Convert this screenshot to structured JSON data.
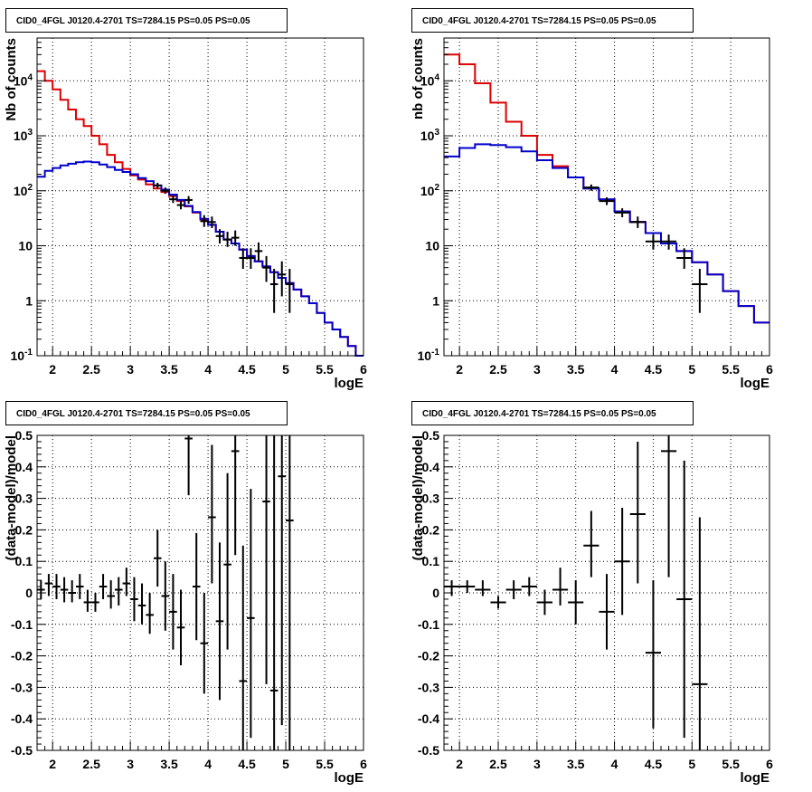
{
  "colors": {
    "data": "#000000",
    "total_model": "#dd0000",
    "source_model": "#0000cc",
    "grid": "#000000"
  },
  "chart_data": [
    {
      "type": "line",
      "title": "CID0_4FGL J0120.4-2701 TS=7284.15 PS=0.05 PS=0.05",
      "xlabel": "logE",
      "ylabel": "Nb of counts",
      "xlim": [
        1.8,
        6.0
      ],
      "ylim": [
        0.1,
        60000
      ],
      "log_y": true,
      "grid": true,
      "x_ticks": [
        2,
        2.5,
        3,
        3.5,
        4,
        4.5,
        5,
        5.5,
        6
      ],
      "x_tick_labels": [
        "2",
        "2.5",
        "3",
        "3.5",
        "4",
        "4.5",
        "5",
        "5.5",
        "6"
      ],
      "y_ticks": [
        0.1,
        1,
        10,
        100,
        1000,
        10000
      ],
      "y_tick_labels": [
        "10^-1",
        "1",
        "10",
        "10^2",
        "10^3",
        "10^4"
      ],
      "bin_edges": [
        1.8,
        1.9,
        2.0,
        2.1,
        2.2,
        2.3,
        2.4,
        2.5,
        2.6,
        2.7,
        2.8,
        2.9,
        3.0,
        3.1,
        3.2,
        3.3,
        3.4,
        3.5,
        3.6,
        3.7,
        3.8,
        3.9,
        4.0,
        4.1,
        4.2,
        4.3,
        4.4,
        4.5,
        4.6,
        4.7,
        4.8,
        4.9,
        5.0,
        5.1,
        5.2,
        5.3,
        5.4,
        5.5,
        5.6,
        5.7,
        5.8,
        5.9,
        6.0
      ],
      "series": [
        {
          "role": "total_model",
          "values": [
            15000,
            10000,
            7000,
            4500,
            3000,
            2000,
            1500,
            1000,
            700,
            450,
            330,
            250,
            190,
            160,
            130,
            110,
            95,
            80,
            65,
            52,
            40,
            30,
            24,
            18,
            13,
            11,
            8.5,
            6.5,
            5.2,
            4.2,
            3.3,
            2.6,
            2.1,
            1.6,
            1.2,
            0.9,
            0.6,
            0.4,
            0.3,
            0.22,
            0.15,
            0.1
          ]
        },
        {
          "role": "source_model",
          "values": [
            180,
            230,
            260,
            290,
            310,
            330,
            340,
            330,
            300,
            270,
            240,
            220,
            200,
            170,
            150,
            125,
            105,
            85,
            68,
            53,
            41,
            31,
            24,
            18,
            13,
            11,
            8.5,
            6.5,
            5.2,
            4.2,
            3.3,
            2.6,
            2.1,
            1.6,
            1.2,
            0.9,
            0.6,
            0.4,
            0.3,
            0.22,
            0.15,
            0.1
          ]
        }
      ],
      "points": [
        {
          "x": 3.35,
          "y": 125,
          "lo": 110,
          "hi": 140
        },
        {
          "x": 3.45,
          "y": 100,
          "lo": 88,
          "hi": 115
        },
        {
          "x": 3.55,
          "y": 70,
          "lo": 60,
          "hi": 82
        },
        {
          "x": 3.65,
          "y": 55,
          "lo": 46,
          "hi": 65
        },
        {
          "x": 3.75,
          "y": 68,
          "lo": 58,
          "hi": 80
        },
        {
          "x": 3.95,
          "y": 28,
          "lo": 22,
          "hi": 36
        },
        {
          "x": 4.05,
          "y": 27,
          "lo": 21,
          "hi": 34
        },
        {
          "x": 4.15,
          "y": 15,
          "lo": 11,
          "hi": 20
        },
        {
          "x": 4.25,
          "y": 13,
          "lo": 9.5,
          "hi": 18
        },
        {
          "x": 4.35,
          "y": 14,
          "lo": 10,
          "hi": 19
        },
        {
          "x": 4.45,
          "y": 6,
          "lo": 3.8,
          "hi": 9
        },
        {
          "x": 4.55,
          "y": 6,
          "lo": 3.8,
          "hi": 9
        },
        {
          "x": 4.65,
          "y": 8,
          "lo": 5.2,
          "hi": 11.5
        },
        {
          "x": 4.75,
          "y": 4,
          "lo": 2.2,
          "hi": 6.5
        },
        {
          "x": 4.85,
          "y": 2,
          "lo": 0.6,
          "hi": 3.8
        },
        {
          "x": 4.95,
          "y": 3,
          "lo": 1.2,
          "hi": 5.2
        },
        {
          "x": 5.05,
          "y": 2,
          "lo": 0.6,
          "hi": 3.8
        }
      ]
    },
    {
      "type": "line",
      "title": "CID0_4FGL J0120.4-2701 TS=7284.15 PS=0.05 PS=0.05",
      "xlabel": "logE",
      "ylabel": "nb of counts",
      "xlim": [
        1.8,
        6.0
      ],
      "ylim": [
        0.1,
        60000
      ],
      "log_y": true,
      "grid": true,
      "x_ticks": [
        2,
        2.5,
        3,
        3.5,
        4,
        4.5,
        5,
        5.5,
        6
      ],
      "x_tick_labels": [
        "2",
        "2.5",
        "3",
        "3.5",
        "4",
        "4.5",
        "5",
        "5.5",
        "6"
      ],
      "y_ticks": [
        0.1,
        1,
        10,
        100,
        1000,
        10000
      ],
      "y_tick_labels": [
        "10^-1",
        "1",
        "10",
        "10^2",
        "10^3",
        "10^4"
      ],
      "bin_edges": [
        1.8,
        2.0,
        2.2,
        2.4,
        2.6,
        2.8,
        3.0,
        3.2,
        3.4,
        3.6,
        3.8,
        4.0,
        4.2,
        4.4,
        4.6,
        4.8,
        5.0,
        5.2,
        5.4,
        5.6,
        5.8,
        6.0
      ],
      "series": [
        {
          "role": "total_model",
          "values": [
            30000,
            20000,
            9000,
            4000,
            1800,
            1000,
            450,
            280,
            175,
            110,
            70,
            42,
            27,
            17,
            11,
            8,
            5,
            3,
            1.5,
            0.8,
            0.4
          ]
        },
        {
          "role": "source_model",
          "values": [
            420,
            600,
            700,
            680,
            620,
            520,
            360,
            260,
            175,
            110,
            70,
            42,
            27,
            17,
            11,
            8,
            5,
            3,
            1.5,
            0.8,
            0.4
          ]
        }
      ],
      "points": [
        {
          "x": 3.7,
          "y": 115,
          "lo": 100,
          "hi": 130
        },
        {
          "x": 3.9,
          "y": 65,
          "lo": 55,
          "hi": 76
        },
        {
          "x": 4.1,
          "y": 40,
          "lo": 33,
          "hi": 48
        },
        {
          "x": 4.3,
          "y": 27,
          "lo": 21,
          "hi": 34
        },
        {
          "x": 4.5,
          "y": 12,
          "lo": 8.5,
          "hi": 16
        },
        {
          "x": 4.7,
          "y": 12,
          "lo": 8.5,
          "hi": 16
        },
        {
          "x": 4.9,
          "y": 6,
          "lo": 3.8,
          "hi": 9
        },
        {
          "x": 5.1,
          "y": 2,
          "lo": 0.6,
          "hi": 3.8
        }
      ]
    },
    {
      "type": "scatter",
      "title": "CID0_4FGL J0120.4-2701 TS=7284.15 PS=0.05 PS=0.05",
      "xlabel": "logE",
      "ylabel": "(data-model)/model",
      "xlim": [
        1.8,
        6.0
      ],
      "ylim": [
        -0.5,
        0.5
      ],
      "grid": true,
      "x_ticks": [
        2,
        2.5,
        3,
        3.5,
        4,
        4.5,
        5,
        5.5,
        6
      ],
      "x_tick_labels": [
        "2",
        "2.5",
        "3",
        "3.5",
        "4",
        "4.5",
        "5",
        "5.5",
        "6"
      ],
      "y_ticks": [
        -0.5,
        -0.4,
        -0.3,
        -0.2,
        -0.1,
        0,
        0.1,
        0.2,
        0.3,
        0.4,
        0.5
      ],
      "y_tick_labels": [
        "-0.5",
        "-0.4",
        "-0.3",
        "-0.2",
        "-0.1",
        "0",
        "0.1",
        "0.2",
        "0.3",
        "0.4",
        "0.5"
      ],
      "x_halfwidth": 0.05,
      "points": [
        {
          "x": 1.85,
          "y": 0.01,
          "lo": -0.02,
          "hi": 0.04
        },
        {
          "x": 1.95,
          "y": 0.03,
          "lo": -0.01,
          "hi": 0.06
        },
        {
          "x": 2.05,
          "y": 0.02,
          "lo": -0.02,
          "hi": 0.06
        },
        {
          "x": 2.15,
          "y": 0.01,
          "lo": -0.03,
          "hi": 0.05
        },
        {
          "x": 2.25,
          "y": 0.0,
          "lo": -0.03,
          "hi": 0.04
        },
        {
          "x": 2.35,
          "y": 0.02,
          "lo": -0.02,
          "hi": 0.06
        },
        {
          "x": 2.45,
          "y": -0.03,
          "lo": -0.06,
          "hi": 0.01
        },
        {
          "x": 2.55,
          "y": -0.03,
          "lo": -0.06,
          "hi": 0.0
        },
        {
          "x": 2.65,
          "y": 0.02,
          "lo": -0.02,
          "hi": 0.06
        },
        {
          "x": 2.75,
          "y": -0.01,
          "lo": -0.05,
          "hi": 0.04
        },
        {
          "x": 2.85,
          "y": 0.01,
          "lo": -0.04,
          "hi": 0.05
        },
        {
          "x": 2.95,
          "y": 0.03,
          "lo": -0.01,
          "hi": 0.08
        },
        {
          "x": 3.05,
          "y": -0.02,
          "lo": -0.09,
          "hi": 0.05
        },
        {
          "x": 3.15,
          "y": -0.04,
          "lo": -0.1,
          "hi": 0.03
        },
        {
          "x": 3.25,
          "y": -0.07,
          "lo": -0.13,
          "hi": 0.0
        },
        {
          "x": 3.35,
          "y": 0.11,
          "lo": 0.02,
          "hi": 0.2
        },
        {
          "x": 3.45,
          "y": -0.01,
          "lo": -0.12,
          "hi": 0.1
        },
        {
          "x": 3.55,
          "y": -0.06,
          "lo": -0.18,
          "hi": 0.06
        },
        {
          "x": 3.65,
          "y": -0.11,
          "lo": -0.23,
          "hi": 0.01
        },
        {
          "x": 3.75,
          "y": 0.49,
          "lo": 0.31,
          "hi": 0.5
        },
        {
          "x": 3.85,
          "y": 0.02,
          "lo": -0.15,
          "hi": 0.19
        },
        {
          "x": 3.95,
          "y": -0.16,
          "lo": -0.32,
          "hi": 0.0
        },
        {
          "x": 4.05,
          "y": 0.24,
          "lo": 0.03,
          "hi": 0.47
        },
        {
          "x": 4.15,
          "y": -0.09,
          "lo": -0.34,
          "hi": 0.16
        },
        {
          "x": 4.25,
          "y": 0.09,
          "lo": -0.18,
          "hi": 0.38
        },
        {
          "x": 4.35,
          "y": 0.45,
          "lo": 0.12,
          "hi": 0.5
        },
        {
          "x": 4.45,
          "y": -0.28,
          "lo": -0.5,
          "hi": 0.15
        },
        {
          "x": 4.55,
          "y": -0.08,
          "lo": -0.46,
          "hi": 0.33
        },
        {
          "x": 4.75,
          "y": 0.29,
          "lo": -0.29,
          "hi": 0.5
        },
        {
          "x": 4.85,
          "y": -0.31,
          "lo": -0.5,
          "hi": 0.5
        },
        {
          "x": 4.95,
          "y": 0.37,
          "lo": -0.42,
          "hi": 0.5
        },
        {
          "x": 5.05,
          "y": 0.23,
          "lo": -0.5,
          "hi": 0.5
        }
      ]
    },
    {
      "type": "scatter",
      "title": "CID0_4FGL J0120.4-2701 TS=7284.15 PS=0.05 PS=0.05",
      "xlabel": "logE",
      "ylabel": "(data-model)/model",
      "xlim": [
        1.8,
        6.0
      ],
      "ylim": [
        -0.5,
        0.5
      ],
      "grid": true,
      "x_ticks": [
        2,
        2.5,
        3,
        3.5,
        4,
        4.5,
        5,
        5.5,
        6
      ],
      "x_tick_labels": [
        "2",
        "2.5",
        "3",
        "3.5",
        "4",
        "4.5",
        "5",
        "5.5",
        "6"
      ],
      "y_ticks": [
        -0.5,
        -0.4,
        -0.3,
        -0.2,
        -0.1,
        0,
        0.1,
        0.2,
        0.3,
        0.4,
        0.5
      ],
      "y_tick_labels": [
        "-0.5",
        "-0.4",
        "-0.3",
        "-0.2",
        "-0.1",
        "0",
        "0.1",
        "0.2",
        "0.3",
        "0.4",
        "0.5"
      ],
      "x_halfwidth": 0.1,
      "points": [
        {
          "x": 1.9,
          "y": 0.02,
          "lo": -0.01,
          "hi": 0.04
        },
        {
          "x": 2.1,
          "y": 0.02,
          "lo": 0.0,
          "hi": 0.04
        },
        {
          "x": 2.3,
          "y": 0.01,
          "lo": -0.01,
          "hi": 0.04
        },
        {
          "x": 2.5,
          "y": -0.03,
          "lo": -0.05,
          "hi": -0.01
        },
        {
          "x": 2.7,
          "y": 0.01,
          "lo": -0.02,
          "hi": 0.04
        },
        {
          "x": 2.9,
          "y": 0.02,
          "lo": -0.01,
          "hi": 0.05
        },
        {
          "x": 3.1,
          "y": -0.03,
          "lo": -0.07,
          "hi": 0.01
        },
        {
          "x": 3.3,
          "y": 0.01,
          "lo": -0.04,
          "hi": 0.08
        },
        {
          "x": 3.5,
          "y": -0.03,
          "lo": -0.1,
          "hi": 0.04
        },
        {
          "x": 3.7,
          "y": 0.15,
          "lo": 0.05,
          "hi": 0.26
        },
        {
          "x": 3.9,
          "y": -0.06,
          "lo": -0.18,
          "hi": 0.06
        },
        {
          "x": 4.1,
          "y": 0.1,
          "lo": -0.07,
          "hi": 0.27
        },
        {
          "x": 4.3,
          "y": 0.25,
          "lo": 0.03,
          "hi": 0.48
        },
        {
          "x": 4.5,
          "y": -0.19,
          "lo": -0.43,
          "hi": 0.04
        },
        {
          "x": 4.7,
          "y": 0.45,
          "lo": 0.05,
          "hi": 0.5
        },
        {
          "x": 4.9,
          "y": -0.02,
          "lo": -0.46,
          "hi": 0.42
        },
        {
          "x": 5.1,
          "y": -0.29,
          "lo": -0.5,
          "hi": 0.24
        }
      ]
    }
  ]
}
